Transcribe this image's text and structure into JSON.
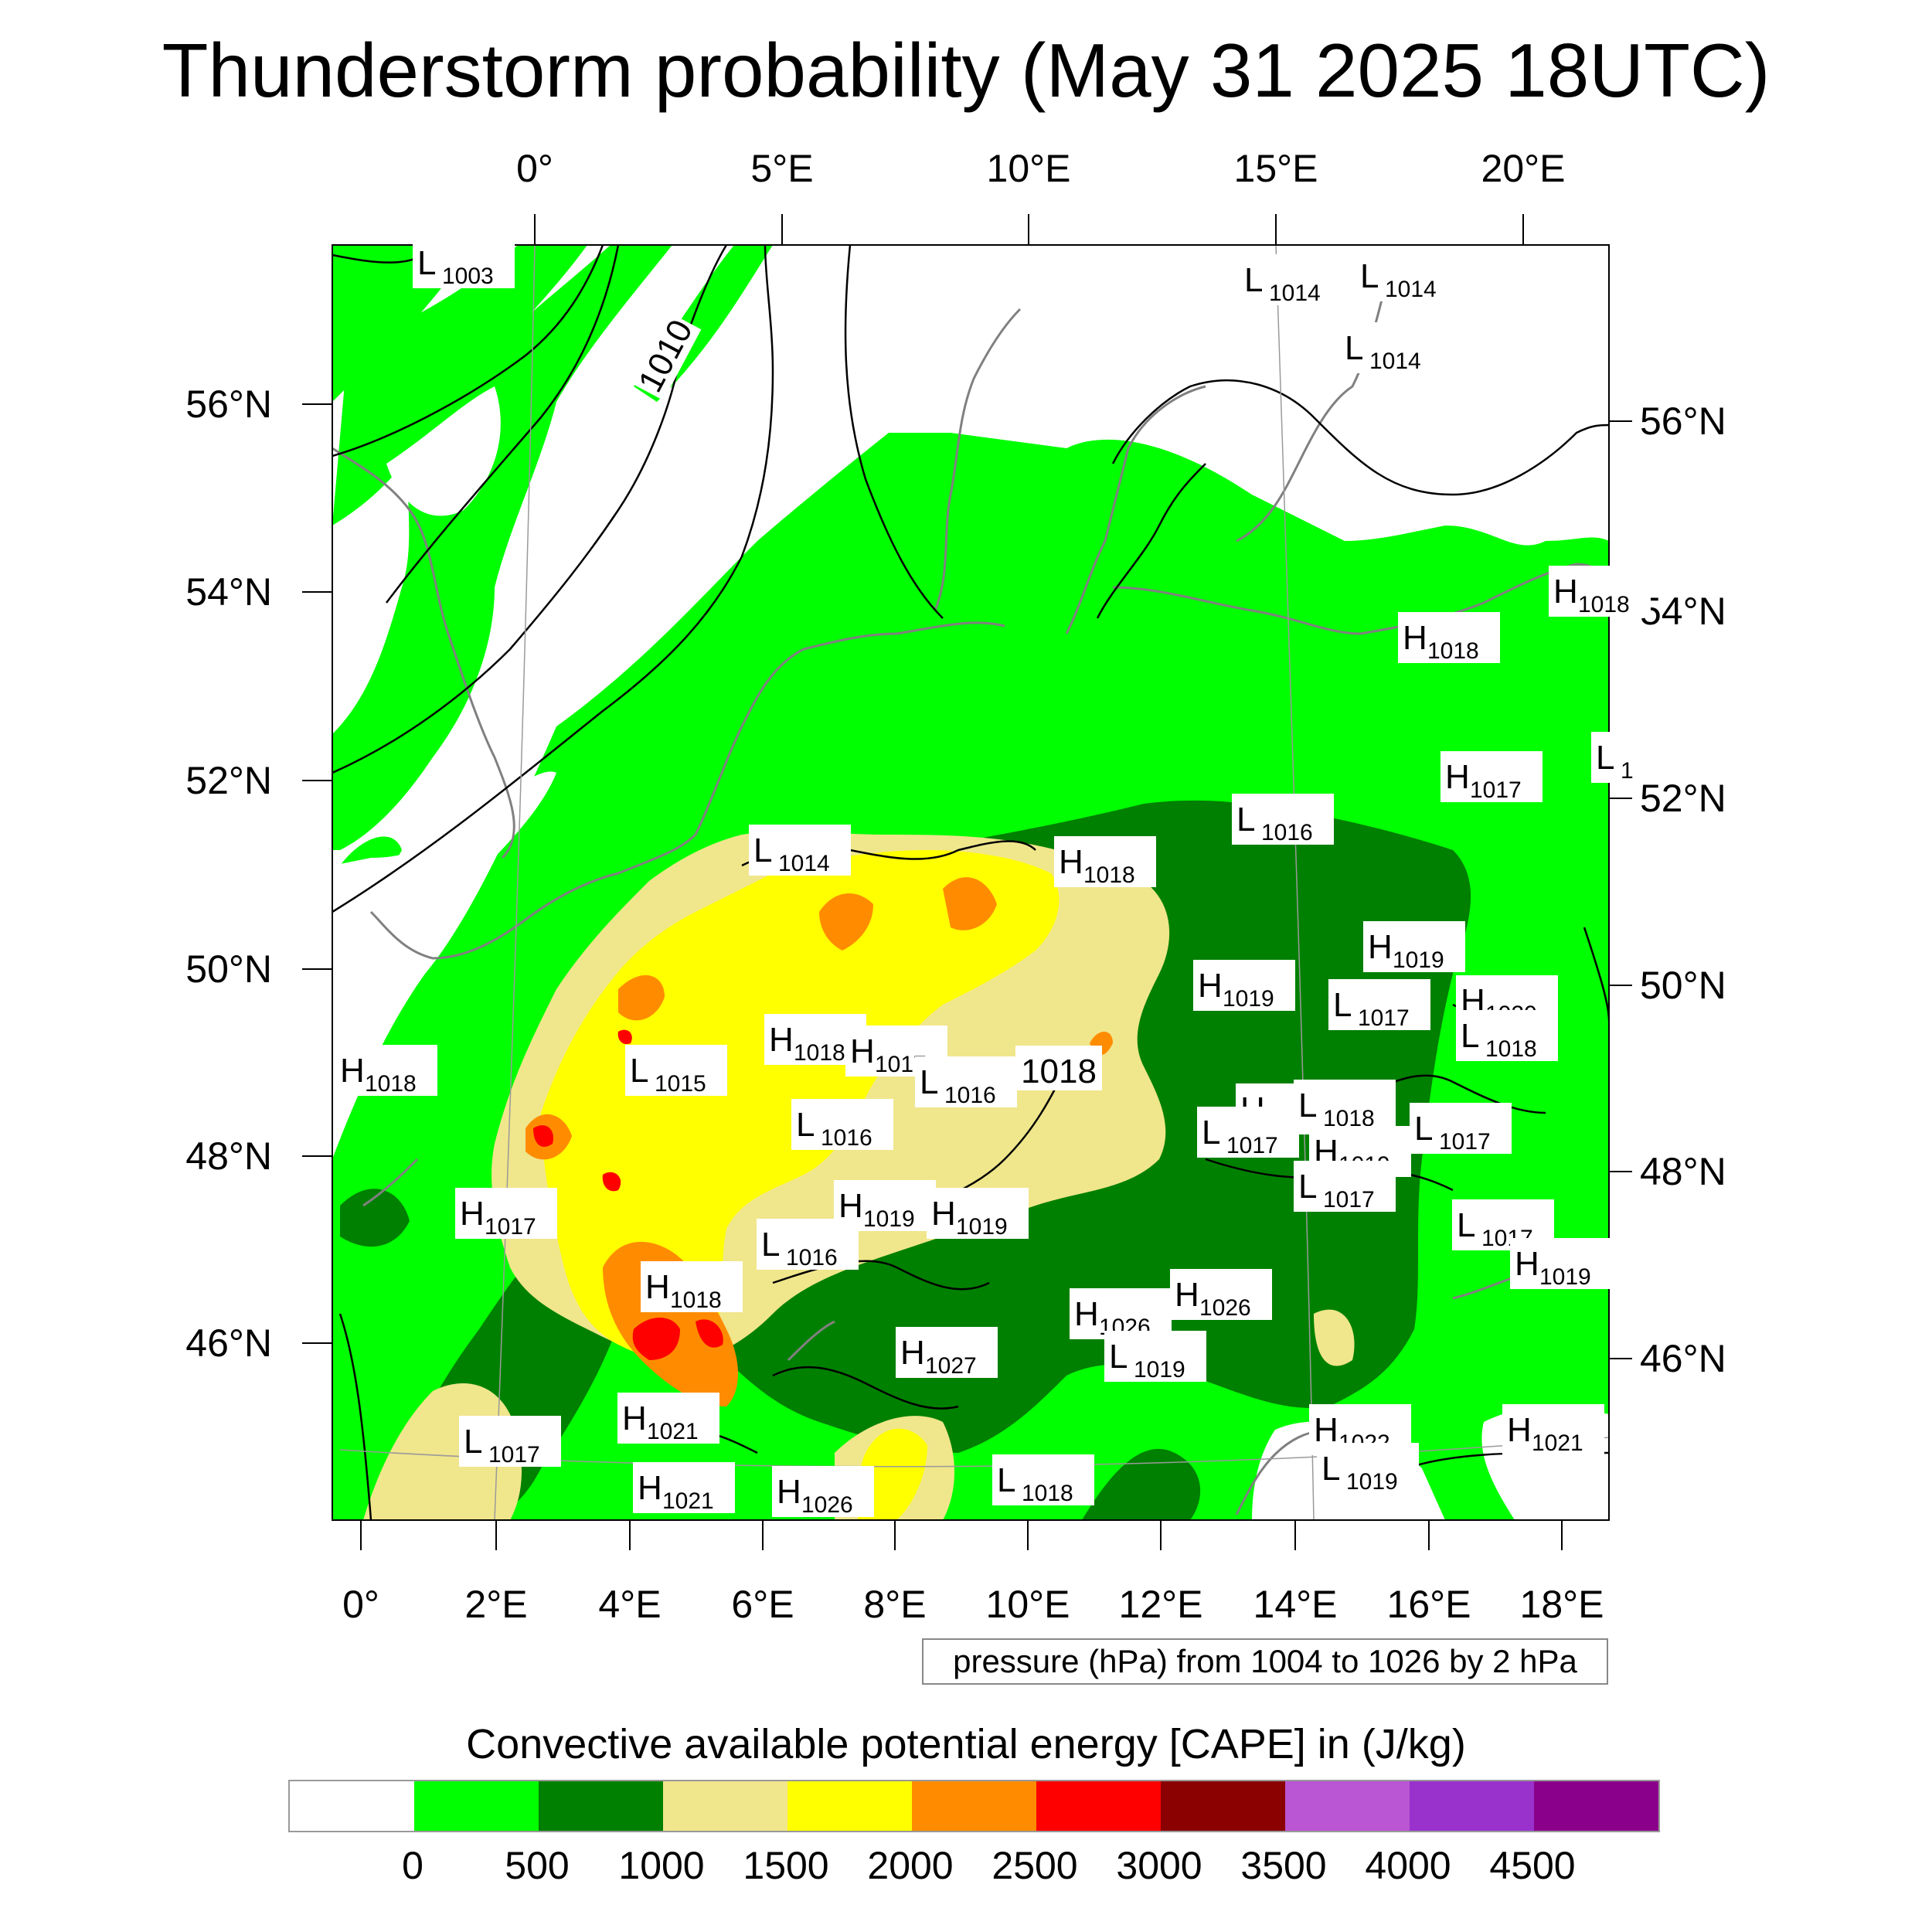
{
  "title": "Thunderstorm probability (May 31 2025 18UTC)",
  "axes": {
    "top_lon": [
      "0°",
      "5°E",
      "10°E",
      "15°E",
      "20°E"
    ],
    "bottom_lon": [
      "0°",
      "2°E",
      "4°E",
      "6°E",
      "8°E",
      "10°E",
      "12°E",
      "14°E",
      "16°E",
      "18°E"
    ],
    "left_lat": [
      "56°N",
      "54°N",
      "52°N",
      "50°N",
      "48°N",
      "46°N"
    ],
    "right_lat": [
      "56°N",
      "54°N",
      "52°N",
      "50°N",
      "48°N",
      "46°N"
    ]
  },
  "pressure_note": "pressure (hPa) from 1004 to 1026 by 2 hPa",
  "isobar_labels": [
    "1010",
    "1018"
  ],
  "pressure_systems": [
    {
      "t": "L",
      "v": "1003"
    },
    {
      "t": "L",
      "v": "1014"
    },
    {
      "t": "L",
      "v": "1014"
    },
    {
      "t": "L",
      "v": "1014"
    },
    {
      "t": "H",
      "v": "1018"
    },
    {
      "t": "H",
      "v": "1018"
    },
    {
      "t": "L",
      "v": "1"
    },
    {
      "t": "H",
      "v": "1017"
    },
    {
      "t": "L",
      "v": "1016"
    },
    {
      "t": "L",
      "v": "1014"
    },
    {
      "t": "H",
      "v": "1018"
    },
    {
      "t": "H",
      "v": "1019"
    },
    {
      "t": "H",
      "v": "1019"
    },
    {
      "t": "L",
      "v": "1017"
    },
    {
      "t": "H",
      "v": "1020"
    },
    {
      "t": "L",
      "v": "1018"
    },
    {
      "t": "H",
      "v": "1018"
    },
    {
      "t": "L",
      "v": "1015"
    },
    {
      "t": "H",
      "v": "1018"
    },
    {
      "t": "H",
      "v": "1017"
    },
    {
      "t": "L",
      "v": "1016"
    },
    {
      "t": "L",
      "v": "1016"
    },
    {
      "t": "H",
      "v": "101"
    },
    {
      "t": "L",
      "v": "1018"
    },
    {
      "t": "L",
      "v": "1017"
    },
    {
      "t": "H",
      "v": "1019"
    },
    {
      "t": "L",
      "v": "1017"
    },
    {
      "t": "L",
      "v": "1017"
    },
    {
      "t": "H",
      "v": "1017"
    },
    {
      "t": "H",
      "v": "1019"
    },
    {
      "t": "L",
      "v": "1016"
    },
    {
      "t": "L",
      "v": "1017"
    },
    {
      "t": "H",
      "v": "1019"
    },
    {
      "t": "H",
      "v": "1018"
    },
    {
      "t": "H",
      "v": "1026"
    },
    {
      "t": "H",
      "v": "1026"
    },
    {
      "t": "H",
      "v": "1027"
    },
    {
      "t": "L",
      "v": "1019"
    },
    {
      "t": "H",
      "v": "1021"
    },
    {
      "t": "L",
      "v": "1017"
    },
    {
      "t": "H",
      "v": "1022"
    },
    {
      "t": "H",
      "v": "1021"
    },
    {
      "t": "L",
      "v": "1019"
    },
    {
      "t": "H",
      "v": "1021"
    },
    {
      "t": "H",
      "v": "1026"
    },
    {
      "t": "L",
      "v": "1018"
    },
    {
      "t": "H",
      "v": "1019"
    }
  ],
  "colorbar": {
    "title": "Convective available potential energy [CAPE] in (J/kg)",
    "colors": [
      "#ffffff",
      "#00ff00",
      "#008000",
      "#f0e68c",
      "#ffff00",
      "#ff8c00",
      "#ff0000",
      "#8b0000",
      "#ba55d3",
      "#9932cc",
      "#8b008b"
    ],
    "labels": [
      "0",
      "500",
      "1000",
      "1500",
      "2000",
      "2500",
      "3000",
      "3500",
      "4000",
      "4500"
    ]
  },
  "map_colors": {
    "green": "#00ff00",
    "darkgreen": "#008000",
    "khaki": "#f0e68c",
    "yellow": "#ffff00",
    "orange": "#ff8c00",
    "red": "#ff0000",
    "coast": "#808080"
  }
}
